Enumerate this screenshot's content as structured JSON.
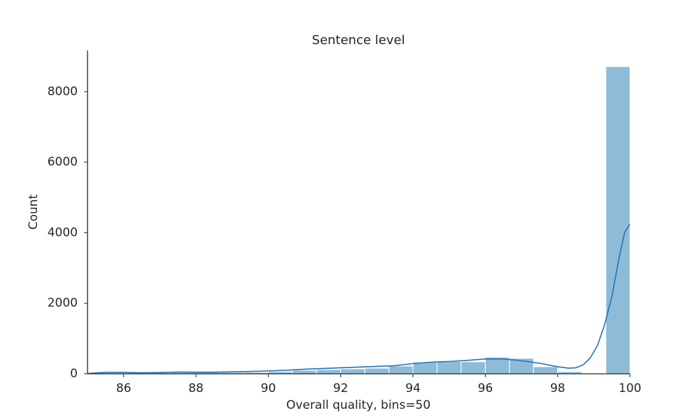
{
  "chart_data": {
    "type": "histogram",
    "title": "Sentence level",
    "xlabel": "Overall quality, bins=50",
    "ylabel": "Count",
    "bins": [
      84.667,
      85.333,
      86,
      86.667,
      87.333,
      88,
      88.667,
      89.333,
      90,
      90.667,
      91.333,
      92,
      92.667,
      93.333,
      94,
      94.667,
      95.333,
      96,
      96.667,
      97.333,
      98,
      98.667,
      99.333,
      100
    ],
    "counts": [
      30,
      30,
      30,
      30,
      40,
      40,
      40,
      40,
      60,
      100,
      120,
      140,
      160,
      220,
      330,
      350,
      340,
      470,
      440,
      200,
      60,
      0,
      8710
    ],
    "color": "#8fbbd9",
    "kde": {
      "color": "#1f77b4",
      "x": [
        85,
        85.5,
        86,
        86.5,
        87,
        87.5,
        88,
        88.5,
        89,
        89.5,
        90,
        90.5,
        91,
        91.5,
        92,
        92.5,
        93,
        93.5,
        94,
        94.5,
        95,
        95.5,
        96,
        96.5,
        97,
        97.5,
        98,
        98.3,
        98.5,
        98.7,
        98.9,
        99.1,
        99.3,
        99.5,
        99.7,
        99.85,
        100
      ],
      "y": [
        10,
        40,
        40,
        30,
        35,
        50,
        45,
        45,
        55,
        65,
        80,
        100,
        130,
        150,
        170,
        190,
        210,
        230,
        290,
        330,
        350,
        380,
        420,
        420,
        370,
        300,
        200,
        160,
        170,
        250,
        450,
        800,
        1400,
        2200,
        3300,
        4000,
        4250
      ]
    },
    "xlim": [
      85,
      100
    ],
    "ylim": [
      0,
      9170
    ],
    "xticks": [
      86,
      88,
      90,
      92,
      94,
      96,
      98,
      100
    ],
    "yticks": [
      0,
      2000,
      4000,
      6000,
      8000
    ]
  }
}
